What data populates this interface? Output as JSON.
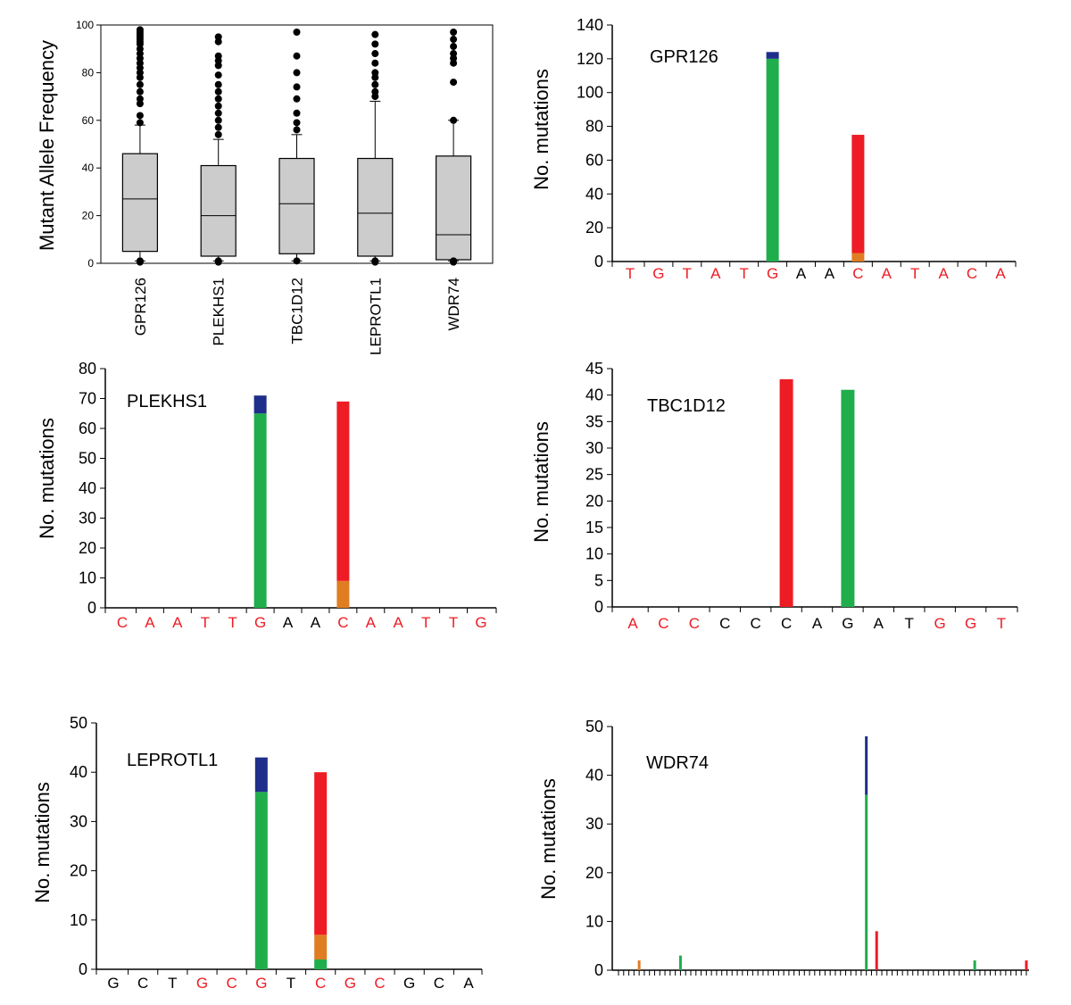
{
  "colors": {
    "blue": "#1f2e8a",
    "green": "#1fae4b",
    "red": "#ee1c24",
    "orange": "#e07d22",
    "box_fill": "#cccccc",
    "seq_red": "#ee1c24",
    "seq_black": "#000000"
  },
  "chart_data": [
    {
      "id": "boxplot",
      "type": "boxplot",
      "ylabel": "Mutant Allele Frequency",
      "ylim": [
        0,
        100
      ],
      "yticks": [
        0,
        20,
        40,
        60,
        80,
        100
      ],
      "categories": [
        "GPR126",
        "PLEKHS1",
        "TBC1D12",
        "LEPROTL1",
        "WDR74"
      ],
      "boxes": [
        {
          "name": "GPR126",
          "min": 1,
          "q1": 5,
          "median": 27,
          "q3": 46,
          "max": 58,
          "outliers": [
            98,
            97,
            96,
            95,
            94,
            93,
            92,
            90,
            88,
            86,
            84,
            82,
            80,
            78,
            75,
            72,
            69,
            67,
            62,
            59,
            1,
            0.5
          ]
        },
        {
          "name": "PLEKHS1",
          "min": 1,
          "q1": 3,
          "median": 20,
          "q3": 41,
          "max": 52,
          "outliers": [
            95,
            93,
            87,
            85,
            83,
            79,
            75,
            72,
            69,
            66,
            63,
            60,
            57,
            54,
            1,
            0.5
          ]
        },
        {
          "name": "TBC1D12",
          "min": 1,
          "q1": 4,
          "median": 25,
          "q3": 44,
          "max": 54,
          "outliers": [
            97,
            87,
            80,
            74,
            69,
            63,
            59,
            56,
            1
          ]
        },
        {
          "name": "LEPROTL1",
          "min": 1,
          "q1": 3,
          "median": 21,
          "q3": 44,
          "max": 68,
          "outliers": [
            96,
            92,
            88,
            84,
            80,
            78,
            75,
            72,
            70,
            1,
            0.5
          ]
        },
        {
          "name": "WDR74",
          "min": 1,
          "q1": 1.5,
          "median": 12,
          "q3": 45,
          "max": 60,
          "outliers": [
            97,
            94,
            91,
            88,
            86,
            84,
            76,
            60,
            1,
            0.5
          ]
        }
      ]
    },
    {
      "id": "gpr126",
      "type": "stacked-bar",
      "title": "GPR126",
      "ylabel": "No. mutations",
      "ylim": [
        0,
        140
      ],
      "yticks": [
        0,
        20,
        40,
        60,
        80,
        100,
        120,
        140
      ],
      "categories": [
        "T",
        "G",
        "T",
        "A",
        "T",
        "G",
        "A",
        "A",
        "C",
        "A",
        "T",
        "A",
        "C",
        "A"
      ],
      "category_colors": [
        "red",
        "red",
        "red",
        "red",
        "red",
        "red",
        "black",
        "black",
        "red",
        "red",
        "red",
        "red",
        "red",
        "red"
      ],
      "bars": [
        {
          "index": 5,
          "segments": [
            {
              "color": "green",
              "value": 120
            },
            {
              "color": "blue",
              "value": 4
            }
          ]
        },
        {
          "index": 8,
          "segments": [
            {
              "color": "orange",
              "value": 5
            },
            {
              "color": "red",
              "value": 70
            }
          ]
        }
      ]
    },
    {
      "id": "plekhs1",
      "type": "stacked-bar",
      "title": "PLEKHS1",
      "ylabel": "No. mutations",
      "ylim": [
        0,
        80
      ],
      "yticks": [
        0,
        10,
        20,
        30,
        40,
        50,
        60,
        70,
        80
      ],
      "categories": [
        "C",
        "A",
        "A",
        "T",
        "T",
        "G",
        "A",
        "A",
        "C",
        "A",
        "A",
        "T",
        "T",
        "G"
      ],
      "category_colors": [
        "red",
        "red",
        "red",
        "red",
        "red",
        "red",
        "black",
        "black",
        "red",
        "red",
        "red",
        "red",
        "red",
        "red"
      ],
      "bars": [
        {
          "index": 5,
          "segments": [
            {
              "color": "green",
              "value": 65
            },
            {
              "color": "blue",
              "value": 6
            }
          ]
        },
        {
          "index": 8,
          "segments": [
            {
              "color": "orange",
              "value": 9
            },
            {
              "color": "red",
              "value": 60
            }
          ]
        }
      ]
    },
    {
      "id": "tbc1d12",
      "type": "stacked-bar",
      "title": "TBC1D12",
      "ylabel": "No. mutations",
      "ylim": [
        0,
        45
      ],
      "yticks": [
        0,
        5,
        10,
        15,
        20,
        25,
        30,
        35,
        40,
        45
      ],
      "categories": [
        "A",
        "C",
        "C",
        "C",
        "C",
        "C",
        "A",
        "G",
        "A",
        "T",
        "G",
        "G",
        "T"
      ],
      "category_colors": [
        "red",
        "red",
        "red",
        "black",
        "black",
        "black",
        "black",
        "black",
        "black",
        "black",
        "red",
        "red",
        "red"
      ],
      "bars": [
        {
          "index": 5,
          "segments": [
            {
              "color": "red",
              "value": 43
            }
          ]
        },
        {
          "index": 7,
          "segments": [
            {
              "color": "green",
              "value": 41
            }
          ]
        }
      ]
    },
    {
      "id": "leprotl1",
      "type": "stacked-bar",
      "title": "LEPROTL1",
      "ylabel": "No. mutations",
      "ylim": [
        0,
        50
      ],
      "yticks": [
        0,
        10,
        20,
        30,
        40,
        50
      ],
      "categories": [
        "G",
        "C",
        "T",
        "G",
        "C",
        "G",
        "T",
        "C",
        "G",
        "C",
        "G",
        "C",
        "A"
      ],
      "category_colors": [
        "black",
        "black",
        "black",
        "red",
        "red",
        "red",
        "black",
        "red",
        "red",
        "red",
        "black",
        "black",
        "black"
      ],
      "bars": [
        {
          "index": 5,
          "segments": [
            {
              "color": "green",
              "value": 36
            },
            {
              "color": "blue",
              "value": 7
            }
          ]
        },
        {
          "index": 7,
          "segments": [
            {
              "color": "green",
              "value": 2
            },
            {
              "color": "orange",
              "value": 5
            },
            {
              "color": "red",
              "value": 33
            }
          ]
        }
      ]
    },
    {
      "id": "wdr74",
      "type": "stacked-bar",
      "title": "WDR74",
      "ylabel": "No. mutations",
      "ylim": [
        0,
        50
      ],
      "yticks": [
        0,
        10,
        20,
        30,
        40,
        50
      ],
      "n_positions": 80,
      "bars": [
        {
          "index": 4,
          "segments": [
            {
              "color": "orange",
              "value": 2
            }
          ]
        },
        {
          "index": 12,
          "segments": [
            {
              "color": "green",
              "value": 3
            }
          ]
        },
        {
          "index": 48,
          "segments": [
            {
              "color": "green",
              "value": 36
            },
            {
              "color": "blue",
              "value": 12
            }
          ]
        },
        {
          "index": 50,
          "segments": [
            {
              "color": "red",
              "value": 8
            }
          ]
        },
        {
          "index": 69,
          "segments": [
            {
              "color": "green",
              "value": 2
            }
          ]
        },
        {
          "index": 79,
          "segments": [
            {
              "color": "red",
              "value": 2
            }
          ]
        }
      ]
    }
  ]
}
